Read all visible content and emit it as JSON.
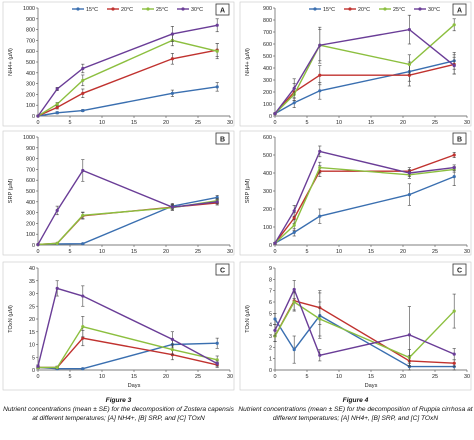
{
  "legend_labels": [
    "15°C",
    "20°C",
    "25°C",
    "30°C"
  ],
  "colors": {
    "15°C": "#3a6fb0",
    "20°C": "#c0322f",
    "25°C": "#8cbf3f",
    "30°C": "#6a3d97"
  },
  "days_label": "Days",
  "captions": {
    "fig3_title": "Figure 3",
    "fig3_text": "Nutrient concentrations (mean ± SE) for the decomposition of Zostera capensis at different temperatures; [A] NH4+, [B] SRP, and [C] TOxN",
    "fig4_title": "Figure 4",
    "fig4_text": "Nutrient concentrations (mean ± SE) for the decomposition of Ruppia cirrhosa at different temperatures; [A] NH4+, [B] SRP, and [C] TOxN"
  },
  "chart_data": [
    {
      "id": "3A",
      "panel_label": "A",
      "type": "line",
      "legend": true,
      "ylabel": "NH4+ (µM)",
      "xlim": [
        0,
        30
      ],
      "ylim": [
        0,
        1000
      ],
      "xticks": [
        0,
        5,
        10,
        15,
        20,
        25,
        30
      ],
      "yticks": [
        0,
        100,
        200,
        300,
        400,
        500,
        600,
        700,
        800,
        900,
        1000
      ],
      "x": [
        0,
        3,
        7,
        21,
        28
      ],
      "series": [
        {
          "name": "15°C",
          "values": [
            0,
            30,
            50,
            210,
            270
          ],
          "err": [
            0,
            10,
            10,
            30,
            40
          ]
        },
        {
          "name": "20°C",
          "values": [
            0,
            80,
            210,
            530,
            610
          ],
          "err": [
            0,
            15,
            40,
            50,
            60
          ]
        },
        {
          "name": "25°C",
          "values": [
            0,
            110,
            330,
            700,
            600
          ],
          "err": [
            0,
            15,
            50,
            50,
            70
          ]
        },
        {
          "name": "30°C",
          "values": [
            0,
            250,
            440,
            760,
            840
          ],
          "err": [
            0,
            15,
            40,
            70,
            60
          ]
        }
      ]
    },
    {
      "id": "3B",
      "panel_label": "B",
      "type": "line",
      "legend": false,
      "ylabel": "SRP (µM)",
      "xlim": [
        0,
        30
      ],
      "ylim": [
        0,
        1000
      ],
      "xticks": [
        0,
        5,
        10,
        15,
        20,
        25,
        30
      ],
      "yticks": [
        0,
        100,
        200,
        300,
        400,
        500,
        600,
        700,
        800,
        900,
        1000
      ],
      "x": [
        0,
        3,
        7,
        21,
        28
      ],
      "series": [
        {
          "name": "15°C",
          "values": [
            5,
            10,
            12,
            360,
            440
          ],
          "err": [
            0,
            5,
            5,
            25,
            20
          ]
        },
        {
          "name": "20°C",
          "values": [
            5,
            15,
            270,
            350,
            390
          ],
          "err": [
            0,
            5,
            30,
            25,
            20
          ]
        },
        {
          "name": "25°C",
          "values": [
            5,
            15,
            275,
            345,
            410
          ],
          "err": [
            0,
            5,
            30,
            25,
            20
          ]
        },
        {
          "name": "30°C",
          "values": [
            5,
            320,
            690,
            350,
            400
          ],
          "err": [
            0,
            40,
            100,
            25,
            20
          ]
        }
      ]
    },
    {
      "id": "3C",
      "panel_label": "C",
      "type": "line",
      "legend": false,
      "ylabel": "TOxN (µM)",
      "xlabel": "Days",
      "xlim": [
        0,
        30
      ],
      "ylim": [
        0,
        40
      ],
      "xticks": [
        0,
        5,
        10,
        15,
        20,
        25,
        30
      ],
      "yticks": [
        0,
        5,
        10,
        15,
        20,
        25,
        30,
        35,
        40
      ],
      "x": [
        0,
        3,
        7,
        21,
        28
      ],
      "series": [
        {
          "name": "15°C",
          "values": [
            1,
            0.5,
            0.5,
            10,
            10.5
          ],
          "err": [
            0.5,
            0.3,
            0.3,
            2,
            2
          ]
        },
        {
          "name": "20°C",
          "values": [
            1,
            1,
            12.5,
            6,
            2
          ],
          "err": [
            0.5,
            0.5,
            3,
            2,
            1
          ]
        },
        {
          "name": "25°C",
          "values": [
            1,
            1,
            17,
            8,
            4
          ],
          "err": [
            0.5,
            0.5,
            4,
            2,
            1.5
          ]
        },
        {
          "name": "30°C",
          "values": [
            1.5,
            32,
            29,
            12,
            2.5
          ],
          "err": [
            0.5,
            3,
            4,
            3,
            1
          ]
        }
      ]
    },
    {
      "id": "4A",
      "panel_label": "A",
      "type": "line",
      "legend": true,
      "ylabel": "NH4+ (µM)",
      "xlim": [
        0,
        30
      ],
      "ylim": [
        0,
        900
      ],
      "xticks": [
        0,
        5,
        10,
        15,
        20,
        25,
        30
      ],
      "yticks": [
        0,
        100,
        200,
        300,
        400,
        500,
        600,
        700,
        800,
        900
      ],
      "x": [
        0,
        3,
        7,
        21,
        28
      ],
      "series": [
        {
          "name": "15°C",
          "values": [
            20,
            110,
            210,
            370,
            460
          ],
          "err": [
            5,
            40,
            70,
            80,
            70
          ]
        },
        {
          "name": "20°C",
          "values": [
            20,
            200,
            340,
            340,
            430
          ],
          "err": [
            5,
            70,
            80,
            90,
            80
          ]
        },
        {
          "name": "25°C",
          "values": [
            20,
            180,
            590,
            430,
            760
          ],
          "err": [
            5,
            50,
            130,
            80,
            50
          ]
        },
        {
          "name": "30°C",
          "values": [
            20,
            230,
            590,
            720,
            420
          ],
          "err": [
            5,
            80,
            150,
            120,
            70
          ]
        }
      ]
    },
    {
      "id": "4B",
      "panel_label": "B",
      "type": "line",
      "legend": false,
      "ylabel": "SRP (µM)",
      "xlim": [
        0,
        30
      ],
      "ylim": [
        0,
        600
      ],
      "xticks": [
        0,
        5,
        10,
        15,
        20,
        25,
        30
      ],
      "yticks": [
        0,
        100,
        200,
        300,
        400,
        500,
        600
      ],
      "x": [
        0,
        3,
        7,
        21,
        28
      ],
      "series": [
        {
          "name": "15°C",
          "values": [
            10,
            70,
            160,
            280,
            380
          ],
          "err": [
            5,
            20,
            40,
            60,
            50
          ]
        },
        {
          "name": "20°C",
          "values": [
            10,
            150,
            410,
            410,
            500
          ],
          "err": [
            5,
            30,
            30,
            20,
            15
          ]
        },
        {
          "name": "25°C",
          "values": [
            10,
            110,
            430,
            390,
            420
          ],
          "err": [
            5,
            30,
            30,
            20,
            15
          ]
        },
        {
          "name": "30°C",
          "values": [
            10,
            190,
            520,
            400,
            430
          ],
          "err": [
            5,
            30,
            30,
            20,
            15
          ]
        }
      ]
    },
    {
      "id": "4C",
      "panel_label": "C",
      "type": "line",
      "legend": false,
      "ylabel": "TOxN (µM)",
      "xlabel": "Days",
      "xlim": [
        0,
        30
      ],
      "ylim": [
        0,
        9
      ],
      "xticks": [
        0,
        5,
        10,
        15,
        20,
        25,
        30
      ],
      "yticks": [
        0,
        1,
        2,
        3,
        4,
        5,
        6,
        7,
        8,
        9
      ],
      "x": [
        0,
        3,
        7,
        21,
        28
      ],
      "series": [
        {
          "name": "15°C",
          "values": [
            4.5,
            1.8,
            4.8,
            0.3,
            0.3
          ],
          "err": [
            0.5,
            1.2,
            2,
            0.3,
            0.3
          ]
        },
        {
          "name": "20°C",
          "values": [
            3,
            6.1,
            5.5,
            0.8,
            0.6
          ],
          "err": [
            0.5,
            0.8,
            1.5,
            0.5,
            0.3
          ]
        },
        {
          "name": "25°C",
          "values": [
            3,
            6,
            4.5,
            1.1,
            5.2
          ],
          "err": [
            0.5,
            0.8,
            1.5,
            0.7,
            1.5
          ]
        },
        {
          "name": "30°C",
          "values": [
            3.5,
            7.1,
            1.3,
            3.1,
            1.4
          ],
          "err": [
            0.5,
            0.8,
            0.5,
            2.5,
            0.5
          ]
        }
      ]
    }
  ]
}
